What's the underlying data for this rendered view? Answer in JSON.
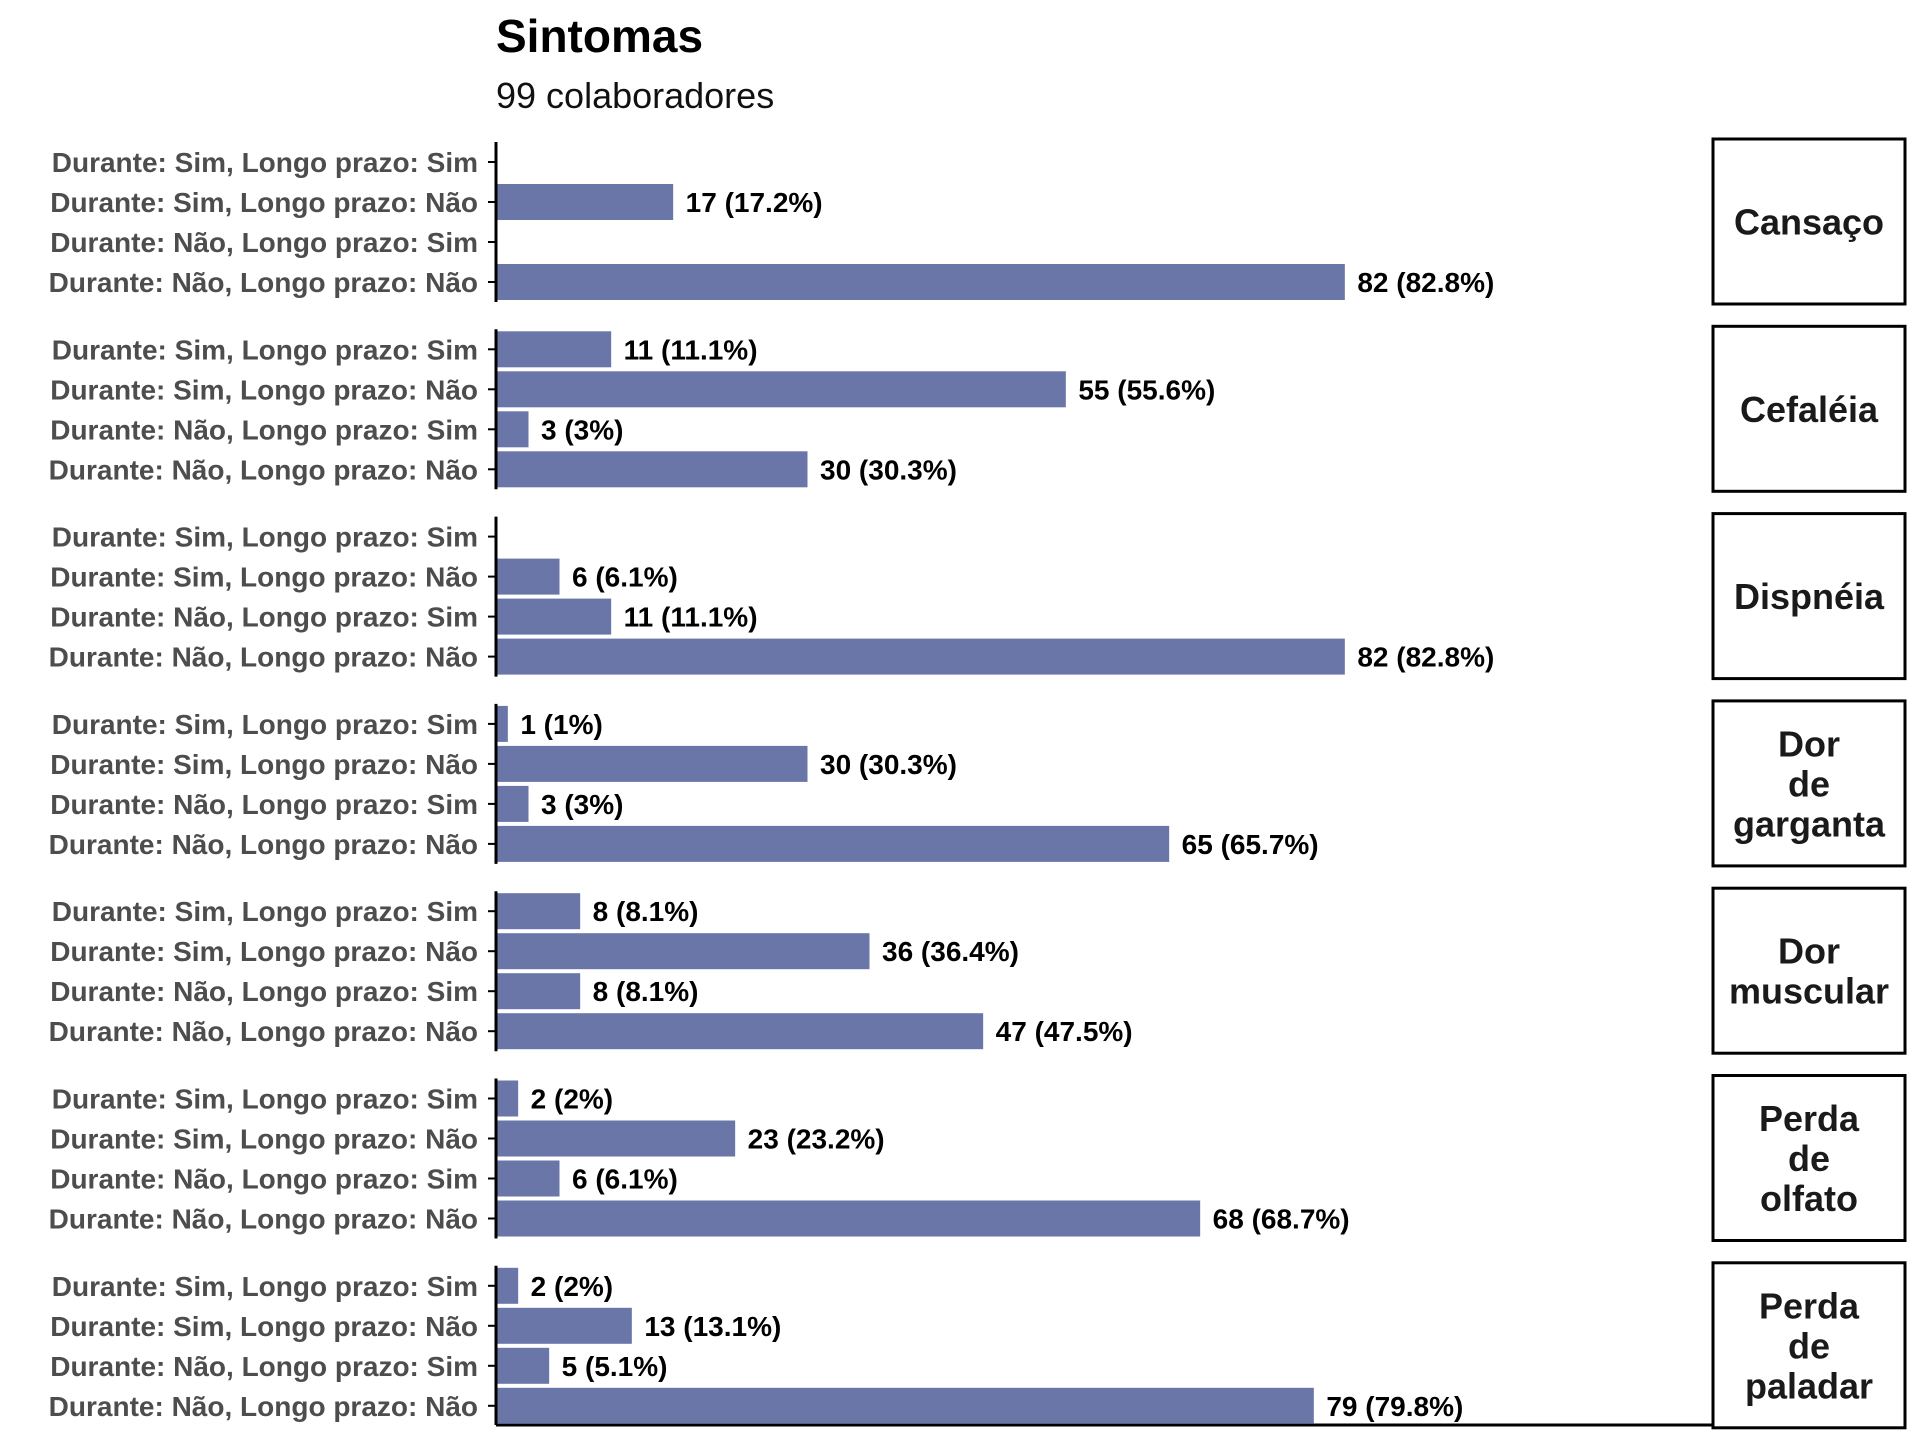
{
  "chart_data": {
    "type": "bar",
    "orientation": "horizontal",
    "faceted": true,
    "title": "Sintomas",
    "subtitle": "99 colaboradores",
    "bar_color": "#6b76a8",
    "categories": [
      "Durante: Sim, Longo prazo: Sim",
      "Durante: Sim, Longo prazo: Não",
      "Durante: Não, Longo prazo: Sim",
      "Durante: Não, Longo prazo: Não"
    ],
    "xlim": [
      0,
      99
    ],
    "facets": [
      {
        "name": "Cansaço",
        "name_lines": [
          "Cansaço"
        ],
        "values": [
          0,
          17,
          0,
          82
        ],
        "labels": [
          "",
          "17 (17.2%)",
          "",
          "82 (82.8%)"
        ]
      },
      {
        "name": "Cefaléia",
        "name_lines": [
          "Cefaléia"
        ],
        "values": [
          11,
          55,
          3,
          30
        ],
        "labels": [
          "11 (11.1%)",
          "55 (55.6%)",
          "3 (3%)",
          "30 (30.3%)"
        ]
      },
      {
        "name": "Dispnéia",
        "name_lines": [
          "Dispnéia"
        ],
        "values": [
          0,
          6,
          11,
          82
        ],
        "labels": [
          "",
          "6 (6.1%)",
          "11 (11.1%)",
          "82 (82.8%)"
        ]
      },
      {
        "name": "Dor de garganta",
        "name_lines": [
          "Dor",
          "de",
          "garganta"
        ],
        "values": [
          1,
          30,
          3,
          65
        ],
        "labels": [
          "1 (1%)",
          "30 (30.3%)",
          "3 (3%)",
          "65 (65.7%)"
        ]
      },
      {
        "name": "Dor muscular",
        "name_lines": [
          "Dor",
          "muscular"
        ],
        "values": [
          8,
          36,
          8,
          47
        ],
        "labels": [
          "8 (8.1%)",
          "36 (36.4%)",
          "8 (8.1%)",
          "47 (47.5%)"
        ]
      },
      {
        "name": "Perda de olfato",
        "name_lines": [
          "Perda",
          "de",
          "olfato"
        ],
        "values": [
          2,
          23,
          6,
          68
        ],
        "labels": [
          "2 (2%)",
          "23 (23.2%)",
          "6 (6.1%)",
          "68 (68.7%)"
        ]
      },
      {
        "name": "Perda de paladar",
        "name_lines": [
          "Perda",
          "de",
          "paladar"
        ],
        "values": [
          2,
          13,
          5,
          79
        ],
        "labels": [
          "2 (2%)",
          "13 (13.1%)",
          "5 (5.1%)",
          "79 (79.8%)"
        ]
      }
    ]
  }
}
